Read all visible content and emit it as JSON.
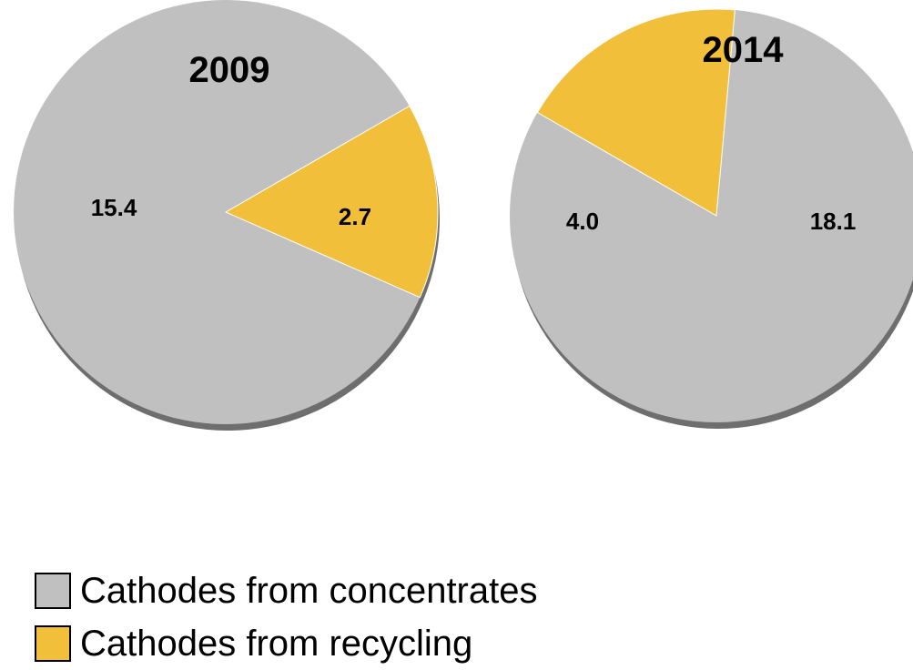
{
  "chart_data": [
    {
      "type": "pie",
      "title": "2009",
      "slices": [
        {
          "label": "Cathodes from concentrates",
          "value": 15.4,
          "value_label": "15.4",
          "color": "#c0c0c0"
        },
        {
          "label": "Cathodes from recycling",
          "value": 2.7,
          "value_label": "2.7",
          "color": "#f2bf3a"
        }
      ]
    },
    {
      "type": "pie",
      "title": "2014",
      "slices": [
        {
          "label": "Cathodes from concentrates",
          "value": 18.1,
          "value_label": "18.1",
          "color": "#c0c0c0"
        },
        {
          "label": "Cathodes from recycling",
          "value": 4.0,
          "value_label": "4.0",
          "color": "#f2bf3a"
        }
      ]
    }
  ],
  "legend": {
    "items": [
      {
        "label": "Cathodes from concentrates",
        "color": "#c0c0c0"
      },
      {
        "label": "Cathodes from recycling",
        "color": "#f2bf3a"
      }
    ]
  },
  "colors": {
    "shadow": "#6e6e6e",
    "slice_edge": "#ffffff"
  }
}
